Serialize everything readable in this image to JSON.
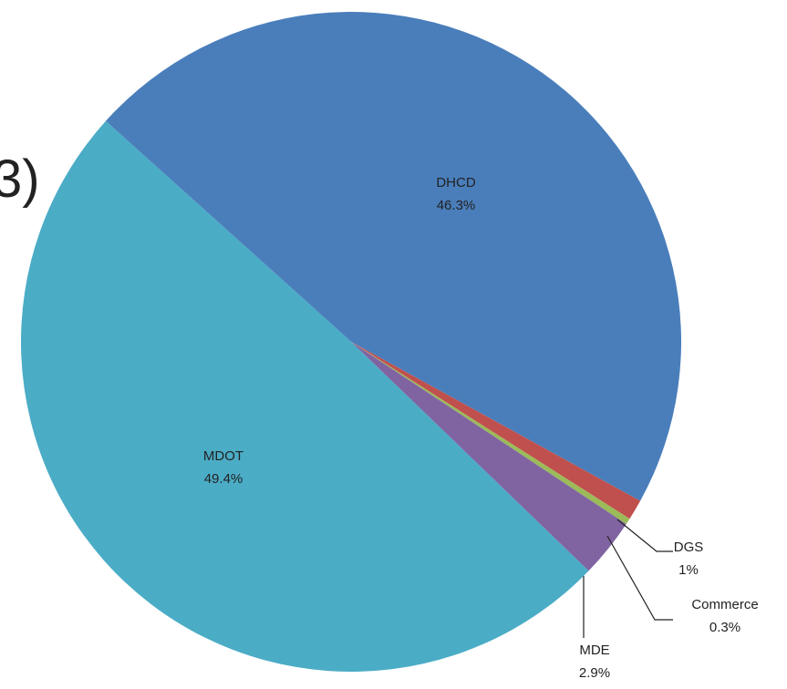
{
  "fragment_text": "3)",
  "chart_data": {
    "type": "pie",
    "title": "",
    "slices": [
      {
        "label": "DHCD",
        "value": 46.3,
        "display": "46.3%",
        "color": "#4a7ebb"
      },
      {
        "label": "DGS",
        "value": 1.0,
        "display": "1%",
        "color": "#c0504d"
      },
      {
        "label": "Commerce",
        "value": 0.3,
        "display": "0.3%",
        "color": "#9bbb59"
      },
      {
        "label": "MDE",
        "value": 2.9,
        "display": "2.9%",
        "color": "#8064a2"
      },
      {
        "label": "MDOT",
        "value": 49.4,
        "display": "49.4%",
        "color": "#4bacc6"
      }
    ]
  }
}
